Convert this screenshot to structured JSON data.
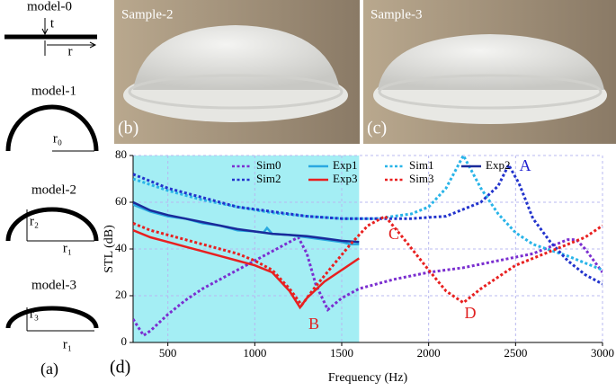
{
  "panel_a": {
    "label": "(a)",
    "models": [
      {
        "name": "model-0",
        "labels": [
          "t",
          "r"
        ]
      },
      {
        "name": "model-1",
        "labels": [
          "r₀"
        ]
      },
      {
        "name": "model-2",
        "labels": [
          "r₂",
          "r₁"
        ]
      },
      {
        "name": "model-3",
        "labels": [
          "r₃",
          "r₁"
        ]
      }
    ]
  },
  "photos": [
    {
      "caption": "Sample-2",
      "panel": "(b)"
    },
    {
      "caption": "Sample-3",
      "panel": "(c)"
    }
  ],
  "chart_data": {
    "type": "line",
    "panel_label": "(d)",
    "x_label": "Frequency (Hz)",
    "y_label": "STL (dB)",
    "xlim": [
      300,
      3000
    ],
    "ylim": [
      0,
      80
    ],
    "xticks": [
      500,
      1000,
      1500,
      2000,
      2500,
      3000
    ],
    "yticks": [
      0,
      20,
      40,
      60,
      80
    ],
    "grid": true,
    "highlight_range": [
      300,
      1600
    ],
    "highlight_color": "#a4eef4",
    "annotations": [
      {
        "text": "A",
        "color": "#1f1fd0"
      },
      {
        "text": "B",
        "color": "#e02020"
      },
      {
        "text": "C",
        "color": "#e02020"
      },
      {
        "text": "D",
        "color": "#e02020"
      }
    ],
    "series": [
      {
        "name": "Sim0",
        "color": "#7b2fd0",
        "dashed": true,
        "x": [
          300,
          360,
          400,
          500,
          600,
          700,
          800,
          900,
          1000,
          1100,
          1200,
          1250,
          1300,
          1350,
          1420,
          1500,
          1600,
          1800,
          2000,
          2200,
          2400,
          2600,
          2800,
          2850,
          2900,
          3000
        ],
        "values": [
          10,
          3,
          5,
          12,
          18,
          23,
          27,
          31,
          35,
          39,
          43,
          45,
          38,
          25,
          14,
          19,
          23,
          27,
          30,
          32,
          35,
          38,
          44,
          44,
          40,
          30
        ]
      },
      {
        "name": "Exp1",
        "color": "#29a8e0",
        "dashed": false,
        "x": [
          300,
          400,
          500,
          600,
          700,
          800,
          900,
          1000,
          1050,
          1070,
          1100,
          1200,
          1300,
          1400,
          1500,
          1550,
          1600
        ],
        "values": [
          59,
          56,
          54,
          53,
          51,
          50,
          48,
          47.5,
          47,
          49,
          46.5,
          46,
          45,
          44,
          43,
          42,
          42
        ]
      },
      {
        "name": "Sim1",
        "color": "#29b4e8",
        "dashed": true,
        "x": [
          300,
          500,
          700,
          900,
          1100,
          1300,
          1500,
          1700,
          1900,
          2000,
          2100,
          2200,
          2300,
          2400,
          2500,
          2600,
          2800,
          3000
        ],
        "values": [
          70,
          65,
          61,
          58,
          55.5,
          54,
          53,
          53,
          55,
          58,
          66,
          80,
          66,
          55,
          47,
          42,
          37,
          31
        ]
      },
      {
        "name": "Exp2",
        "color": "#1a2a9a",
        "dashed": false,
        "x": [
          300,
          400,
          500,
          600,
          700,
          800,
          900,
          1000,
          1100,
          1200,
          1300,
          1400,
          1500,
          1600
        ],
        "values": [
          60,
          56.5,
          54.5,
          53,
          51.5,
          50,
          48.5,
          47.5,
          46.5,
          46,
          45.5,
          44.5,
          43.5,
          43
        ]
      },
      {
        "name": "Sim2",
        "color": "#2233cc",
        "dashed": true,
        "x": [
          300,
          500,
          700,
          900,
          1100,
          1300,
          1500,
          1700,
          1900,
          2100,
          2300,
          2400,
          2460,
          2520,
          2600,
          2700,
          2800,
          2900,
          3000
        ],
        "values": [
          72,
          66,
          62,
          58,
          56,
          54,
          53,
          53,
          53,
          54,
          60,
          67,
          76,
          68,
          53,
          43,
          35,
          29,
          25
        ]
      },
      {
        "name": "Exp3",
        "color": "#e82020",
        "dashed": false,
        "x": [
          300,
          400,
          500,
          600,
          700,
          800,
          900,
          1000,
          1100,
          1200,
          1260,
          1300,
          1400,
          1500,
          1600
        ],
        "values": [
          48,
          45,
          43,
          41,
          39,
          37,
          35,
          33,
          30,
          22,
          15,
          19,
          26,
          31,
          36
        ]
      },
      {
        "name": "Sim3",
        "color": "#e82020",
        "dashed": true,
        "x": [
          300,
          400,
          500,
          600,
          700,
          800,
          900,
          1000,
          1100,
          1200,
          1270,
          1350,
          1450,
          1550,
          1650,
          1750,
          1850,
          2000,
          2100,
          2200,
          2300,
          2500,
          2700,
          2900,
          3000
        ],
        "values": [
          51,
          48,
          46,
          44,
          42,
          40,
          38,
          35,
          31,
          23,
          16,
          24,
          33,
          42,
          50,
          54,
          45,
          31,
          22,
          17,
          23,
          33,
          39,
          45,
          50
        ]
      }
    ]
  }
}
